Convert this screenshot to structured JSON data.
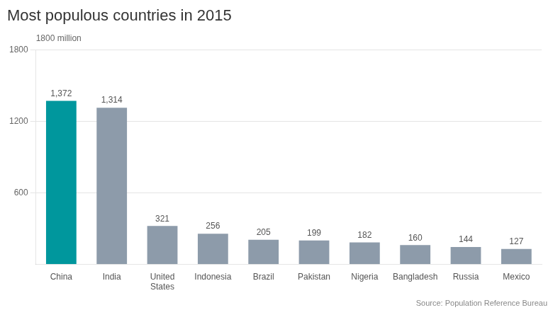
{
  "chart_data": {
    "type": "bar",
    "title": "Most populous countries in 2015",
    "annotations": [
      "1800 million",
      "Source: Population Reference Bureau"
    ],
    "categories": [
      "China",
      "India",
      "United\nStates",
      "Indonesia",
      "Brazil",
      "Pakistan",
      "Nigeria",
      "Bangladesh",
      "Russia",
      "Mexico"
    ],
    "values": [
      1372,
      1314,
      321,
      256,
      205,
      199,
      182,
      160,
      144,
      127
    ],
    "value_labels": [
      "1,372",
      "1,314",
      "321",
      "256",
      "205",
      "199",
      "182",
      "160",
      "144",
      "127"
    ],
    "data_labels": true,
    "colors": [
      "#00979d",
      "#8d9baa",
      "#8d9baa",
      "#8d9baa",
      "#8d9baa",
      "#8d9baa",
      "#8d9baa",
      "#8d9baa",
      "#8d9baa",
      "#8d9baa"
    ],
    "ylim": [
      0,
      1800
    ],
    "yticks": [
      600,
      1200,
      1800
    ],
    "grid": true
  }
}
